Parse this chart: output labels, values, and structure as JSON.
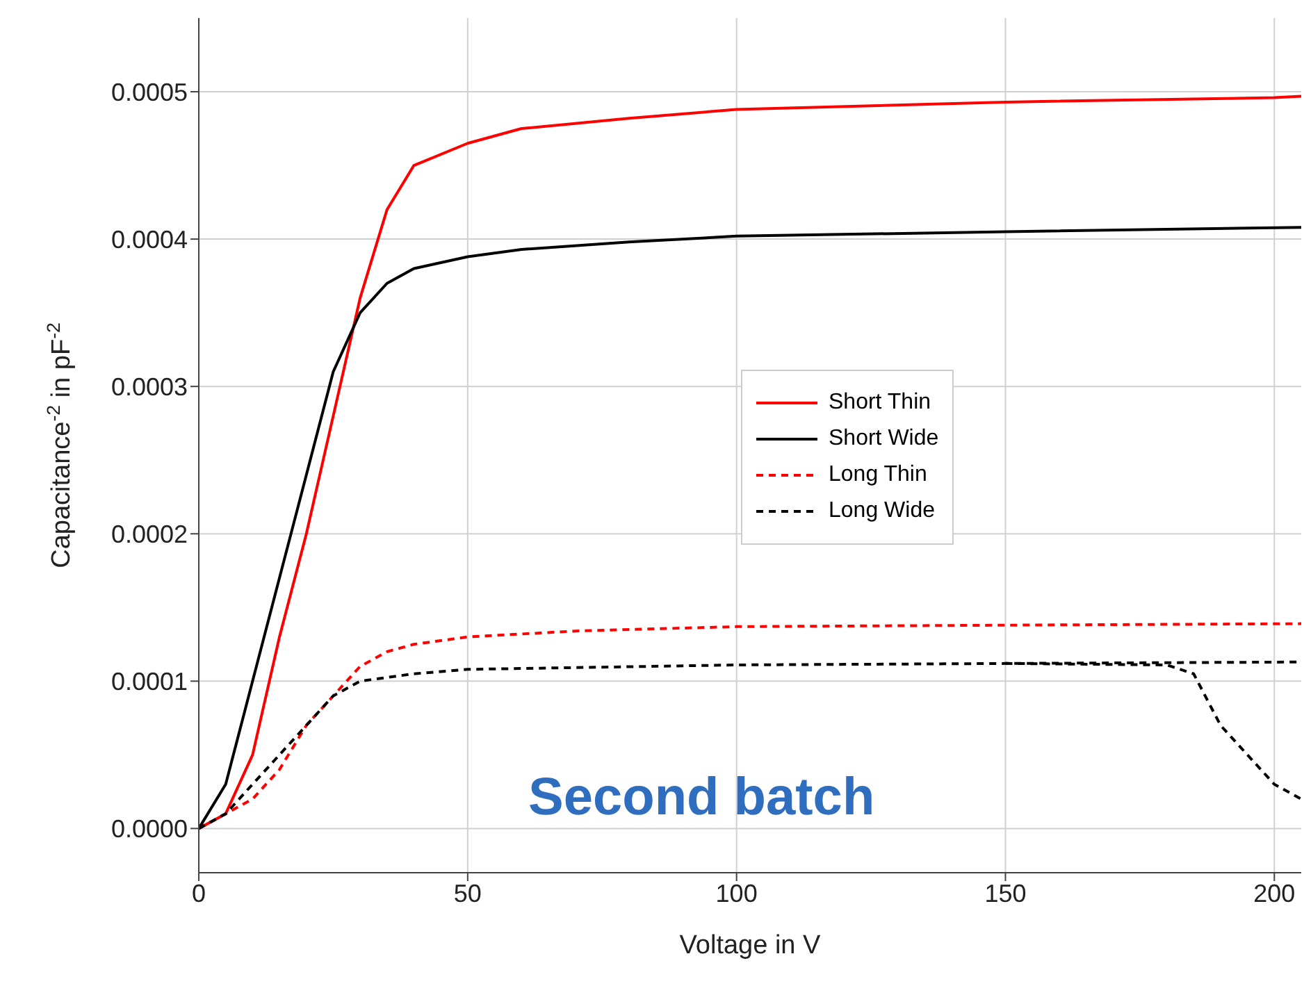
{
  "chart_data": {
    "type": "line",
    "xlabel": "Voltage in V",
    "ylabel": "Capacitance$^{-2}$ in pF$^{-2}$",
    "annotations": [
      "Second batch"
    ],
    "xlim": [
      0,
      205
    ],
    "xticks": [
      0,
      50,
      100,
      150,
      200
    ],
    "ylim": [
      -3e-05,
      0.00055
    ],
    "yticks": [
      {
        "value": 0,
        "label": "0.0000"
      },
      0.0001,
      0.0002,
      0.0003,
      0.0004,
      0.0005
    ],
    "grid": true,
    "legend": "right",
    "marker": "none",
    "series": [
      {
        "name": "Short Thin",
        "color": "#ff0000",
        "line_style": "solid",
        "x": [
          0,
          5,
          10,
          15,
          20,
          25,
          30,
          35,
          40,
          50,
          60,
          80,
          100,
          150,
          200,
          205
        ],
        "values": [
          0,
          1e-05,
          5e-05,
          0.00013,
          0.0002,
          0.00028,
          0.00036,
          0.00042,
          0.00045,
          0.000465,
          0.000475,
          0.000482,
          0.000488,
          0.000493,
          0.000496,
          0.000497
        ]
      },
      {
        "name": "Short Wide",
        "color": "#000000",
        "line_style": "solid",
        "x": [
          0,
          5,
          10,
          15,
          20,
          25,
          30,
          35,
          40,
          50,
          60,
          80,
          100,
          150,
          205
        ],
        "values": [
          0,
          3e-05,
          0.0001,
          0.00017,
          0.00024,
          0.00031,
          0.00035,
          0.00037,
          0.00038,
          0.000388,
          0.000393,
          0.000398,
          0.000402,
          0.000405,
          0.000408
        ]
      },
      {
        "name": "Long Thin",
        "color": "#ff0000",
        "line_style": "dashed",
        "x": [
          0,
          5,
          10,
          15,
          20,
          25,
          30,
          35,
          40,
          50,
          70,
          100,
          150,
          205
        ],
        "values": [
          0,
          1e-05,
          2e-05,
          4e-05,
          7e-05,
          9e-05,
          0.00011,
          0.00012,
          0.000125,
          0.00013,
          0.000134,
          0.000137,
          0.000138,
          0.000139
        ]
      },
      {
        "name": "Long Wide",
        "color": "#000000",
        "line_style": "dashed",
        "x": [
          0,
          5,
          10,
          15,
          20,
          25,
          30,
          40,
          50,
          100,
          150,
          205
        ],
        "values": [
          0,
          1e-05,
          3e-05,
          5e-05,
          7e-05,
          9e-05,
          0.0001,
          0.000105,
          0.000108,
          0.000111,
          0.000112,
          0.000113
        ]
      },
      {
        "color": "#000000",
        "line_style": "dashed",
        "x": [
          150,
          180,
          185,
          190,
          195,
          200,
          205
        ],
        "values": [
          0.000112,
          0.000111,
          0.000105,
          7e-05,
          5e-05,
          3e-05,
          2e-05
        ]
      }
    ]
  }
}
